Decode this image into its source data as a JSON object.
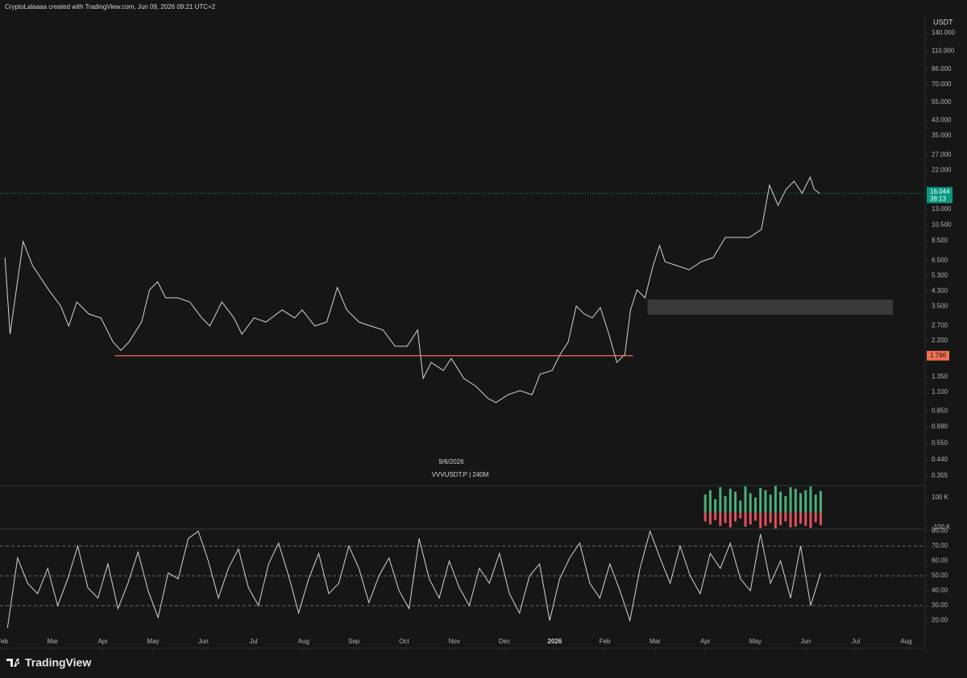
{
  "header": "CryptoLalaaaa created with TradingView.com, Jun 09, 2026 09:21 UTC+2",
  "watermark": {
    "date": "9/6/2026",
    "symbol": "VVVUSDT.P | 240M"
  },
  "brand": "TradingView",
  "chart_data": [
    {
      "type": "line",
      "unit": "USDT",
      "log_scale": true,
      "color": "#d1d4dc",
      "x": [
        0.05,
        0.15,
        0.41,
        0.6,
        0.92,
        1.16,
        1.32,
        1.48,
        1.72,
        1.96,
        2.2,
        2.36,
        2.52,
        2.77,
        2.93,
        3.09,
        3.25,
        3.49,
        3.73,
        3.97,
        4.13,
        4.37,
        4.61,
        4.77,
        5.01,
        5.25,
        5.57,
        5.82,
        5.97,
        6.22,
        6.46,
        6.67,
        6.86,
        7.1,
        7.34,
        7.58,
        7.82,
        8.06,
        8.27,
        8.38,
        8.54,
        8.78,
        8.94,
        9.19,
        9.43,
        9.67,
        9.83,
        10.07,
        10.31,
        10.55,
        10.71,
        10.95,
        11.11,
        11.27,
        11.43,
        11.59,
        11.75,
        11.91,
        12.08,
        12.24,
        12.4,
        12.51,
        12.64,
        12.8,
        12.96,
        13.09,
        13.2,
        13.44,
        13.68,
        13.92,
        14.16,
        14.4,
        14.64,
        14.88,
        15.12,
        15.28,
        15.45,
        15.61,
        15.77,
        15.93,
        16.09,
        16.17,
        16.28
      ],
      "values": [
        6.75,
        2.4,
        8.39,
        6.05,
        4.37,
        3.51,
        2.68,
        3.71,
        3.15,
        2.99,
        2.16,
        1.93,
        2.16,
        2.83,
        4.37,
        4.87,
        3.92,
        3.92,
        3.71,
        2.99,
        2.68,
        3.71,
        2.99,
        2.4,
        2.99,
        2.83,
        3.33,
        2.99,
        3.33,
        2.68,
        2.83,
        4.51,
        3.33,
        2.83,
        2.68,
        2.54,
        2.04,
        2.04,
        2.54,
        1.32,
        1.64,
        1.47,
        1.73,
        1.32,
        1.19,
        1.01,
        0.954,
        1.06,
        1.12,
        1.06,
        1.4,
        1.47,
        1.83,
        2.16,
        3.51,
        3.15,
        2.99,
        3.44,
        2.4,
        1.64,
        1.83,
        3.33,
        4.37,
        3.92,
        6.05,
        7.94,
        6.39,
        6.05,
        5.73,
        6.39,
        6.75,
        8.86,
        8.86,
        8.86,
        9.88,
        17.94,
        13.68,
        17.0,
        18.95,
        16.1,
        20.0,
        17.0,
        16.044
      ],
      "countdown": "38:13",
      "last_color": "#089981",
      "hline": {
        "value": 1.796,
        "x": [
          2.24,
          12.56
        ],
        "color": "#f2704f"
      },
      "box": {
        "x": [
          12.85,
          17.74
        ],
        "y": [
          3.12,
          3.83
        ],
        "color": "#3a3a3a"
      },
      "ylim": [
        0.311,
        176
      ],
      "yticks": [
        {
          "value": 140,
          "label": "140.000"
        },
        {
          "value": 110,
          "label": "110.000"
        },
        {
          "value": 86,
          "label": "86.000"
        },
        {
          "value": 70,
          "label": "70.000"
        },
        {
          "value": 55,
          "label": "55.000"
        },
        {
          "value": 43,
          "label": "43.000"
        },
        {
          "value": 35,
          "label": "35.000"
        },
        {
          "value": 27,
          "label": "27.000"
        },
        {
          "value": 22,
          "label": "22.000"
        },
        {
          "value": 13,
          "label": "13.000"
        },
        {
          "value": 10.5,
          "label": "10.500"
        },
        {
          "value": 8.5,
          "label": "8.500"
        },
        {
          "value": 6.5,
          "label": "6.500"
        },
        {
          "value": 5.3,
          "label": "5.300"
        },
        {
          "value": 4.3,
          "label": "4.300"
        },
        {
          "value": 3.5,
          "label": "3.500"
        },
        {
          "value": 2.7,
          "label": "2.700"
        },
        {
          "value": 2.2,
          "label": "2.200"
        },
        {
          "value": 1.35,
          "label": "1.350"
        },
        {
          "value": 1.1,
          "label": "1.100"
        },
        {
          "value": 0.85,
          "label": "0.850"
        },
        {
          "value": 0.69,
          "label": "0.690"
        },
        {
          "value": 0.55,
          "label": "0.550"
        },
        {
          "value": 0.44,
          "label": "0.440"
        },
        {
          "value": 0.355,
          "label": "0.355"
        }
      ],
      "xlim": [
        -0.05,
        18.38
      ],
      "xticks": [
        {
          "value": 0,
          "label": "Feb"
        },
        {
          "value": 1,
          "label": "Mar"
        },
        {
          "value": 2,
          "label": "Apr"
        },
        {
          "value": 3,
          "label": "May"
        },
        {
          "value": 4,
          "label": "Jun"
        },
        {
          "value": 5,
          "label": "Jul"
        },
        {
          "value": 6,
          "label": "Aug"
        },
        {
          "value": 7,
          "label": "Sep"
        },
        {
          "value": 8,
          "label": "Oct"
        },
        {
          "value": 9,
          "label": "Nov"
        },
        {
          "value": 10,
          "label": "Dec"
        },
        {
          "value": 11,
          "label": "2026"
        },
        {
          "value": 12,
          "label": "Feb"
        },
        {
          "value": 13,
          "label": "Mar"
        },
        {
          "value": 14,
          "label": "Apr"
        },
        {
          "value": 15,
          "label": "May"
        },
        {
          "value": 16,
          "label": "Jun"
        },
        {
          "value": 17,
          "label": "Jul"
        },
        {
          "value": 18,
          "label": "Aug"
        }
      ]
    },
    {
      "type": "bar",
      "x": [
        14,
        14.1,
        14.2,
        14.3,
        14.4,
        14.5,
        14.6,
        14.7,
        14.8,
        14.9,
        15,
        15.1,
        15.2,
        15.3,
        15.4,
        15.5,
        15.6,
        15.7,
        15.8,
        15.9,
        16,
        16.1,
        16.2,
        16.3
      ],
      "series": [
        {
          "color": "#4caf7a",
          "values": [
            120000,
            150000,
            90000,
            170000,
            110000,
            160000,
            140000,
            80000,
            175000,
            130000,
            100000,
            165000,
            150000,
            120000,
            178000,
            140000,
            110000,
            170000,
            160000,
            130000,
            150000,
            175000,
            120000,
            145000
          ]
        },
        {
          "color": "#e0505a",
          "values": [
            -60000,
            -80000,
            -50000,
            -90000,
            -70000,
            -100000,
            -60000,
            -40000,
            -95000,
            -80000,
            -55000,
            -105000,
            -90000,
            -70000,
            -108000,
            -85000,
            -60000,
            -100000,
            -95000,
            -75000,
            -90000,
            -105000,
            -65000,
            -85000
          ]
        }
      ],
      "ylim": [
        -111000,
        181000
      ],
      "yticks": [
        {
          "value": 100000,
          "label": "100 K"
        },
        {
          "value": -100000,
          "label": "-100 K"
        }
      ]
    },
    {
      "type": "line",
      "color": "#d1d4dc",
      "x": [
        0.1,
        0.3,
        0.5,
        0.7,
        0.9,
        1.1,
        1.3,
        1.5,
        1.7,
        1.9,
        2.1,
        2.3,
        2.5,
        2.7,
        2.9,
        3.1,
        3.3,
        3.5,
        3.7,
        3.9,
        4.1,
        4.3,
        4.5,
        4.7,
        4.9,
        5.1,
        5.3,
        5.5,
        5.7,
        5.9,
        6.1,
        6.3,
        6.5,
        6.7,
        6.9,
        7.1,
        7.3,
        7.5,
        7.7,
        7.9,
        8.1,
        8.3,
        8.5,
        8.7,
        8.9,
        9.1,
        9.3,
        9.5,
        9.7,
        9.9,
        10.1,
        10.3,
        10.5,
        10.7,
        10.9,
        11.1,
        11.3,
        11.5,
        11.7,
        11.9,
        12.1,
        12.3,
        12.5,
        12.7,
        12.9,
        13.1,
        13.3,
        13.5,
        13.7,
        13.9,
        14.1,
        14.3,
        14.5,
        14.7,
        14.9,
        15.1,
        15.3,
        15.5,
        15.7,
        15.9,
        16.1,
        16.3
      ],
      "values": [
        15,
        62,
        45,
        38,
        55,
        30,
        48,
        70,
        42,
        35,
        58,
        28,
        45,
        66,
        40,
        22,
        52,
        48,
        75,
        80,
        60,
        35,
        55,
        68,
        42,
        30,
        58,
        72,
        50,
        25,
        48,
        65,
        38,
        45,
        70,
        55,
        32,
        50,
        62,
        40,
        28,
        75,
        48,
        35,
        60,
        42,
        30,
        55,
        45,
        65,
        38,
        25,
        50,
        58,
        20,
        48,
        62,
        72,
        45,
        35,
        58,
        40,
        20,
        55,
        80,
        62,
        45,
        70,
        50,
        38,
        65,
        55,
        72,
        48,
        40,
        78,
        45,
        60,
        35,
        70,
        30,
        52
      ],
      "levels": [
        70,
        50,
        30
      ],
      "ylim": [
        9.5,
        81.4
      ],
      "yticks": [
        {
          "value": 80,
          "label": "80.00"
        },
        {
          "value": 70,
          "label": "70.00"
        },
        {
          "value": 60,
          "label": "60.00"
        },
        {
          "value": 50,
          "label": "50.00"
        },
        {
          "value": 40,
          "label": "40.00"
        },
        {
          "value": 30,
          "label": "30.00"
        },
        {
          "value": 20,
          "label": "20.00"
        }
      ]
    }
  ]
}
